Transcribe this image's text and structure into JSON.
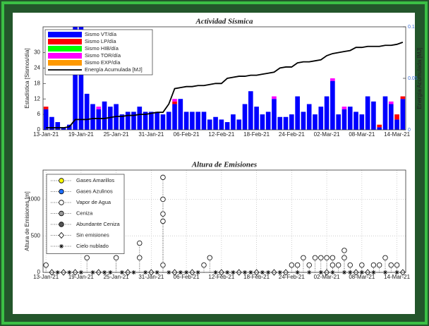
{
  "chart_data": [
    {
      "type": "bar",
      "title": "Actividad Sísmica",
      "ylabel": "Estadística [Sismos/día]",
      "y2label": "Energía Acumulada [MJ]",
      "categories": [
        "13-Jan-21",
        null,
        null,
        null,
        null,
        null,
        "19-Jan-21",
        null,
        null,
        null,
        null,
        null,
        "25-Jan-21",
        null,
        null,
        null,
        null,
        null,
        "31-Jan-21",
        null,
        null,
        null,
        null,
        null,
        "06-Feb-21",
        null,
        null,
        null,
        null,
        null,
        "12-Feb-21",
        null,
        null,
        null,
        null,
        null,
        "18-Feb-21",
        null,
        null,
        null,
        null,
        null,
        "24-Feb-21",
        null,
        null,
        null,
        null,
        null,
        "02-Mar-21",
        null,
        null,
        null,
        null,
        null,
        "08-Mar-21",
        null,
        null,
        null,
        null,
        null,
        "14-Mar-21",
        null
      ],
      "series": [
        {
          "name": "Sismo VT/día",
          "color": "#0000ff",
          "values": [
            8,
            5,
            3,
            1,
            2,
            40,
            40,
            14,
            10,
            8,
            11,
            9,
            10,
            6,
            7,
            7,
            9,
            7,
            7,
            7,
            6,
            7,
            10,
            12,
            7,
            7,
            7,
            7,
            4,
            5,
            4,
            3,
            6,
            4,
            10,
            15,
            9,
            6,
            7,
            12,
            5,
            5,
            6,
            13,
            7,
            10,
            6,
            9,
            13,
            19,
            6,
            8,
            9,
            7,
            6,
            13,
            11,
            1,
            13,
            10,
            4,
            12
          ]
        },
        {
          "name": "Sismo LP/día",
          "color": "#ff0000",
          "values": [
            1,
            0,
            0,
            0,
            0,
            0,
            0,
            0,
            0,
            0,
            0,
            0,
            0,
            0,
            0,
            0,
            0,
            0,
            0,
            0,
            0,
            0,
            1,
            0,
            0,
            0,
            0,
            0,
            0,
            0,
            0,
            0,
            0,
            0,
            0,
            0,
            0,
            0,
            0,
            0,
            0,
            0,
            0,
            0,
            0,
            0,
            0,
            0,
            0,
            0,
            0,
            0,
            0,
            0,
            0,
            0,
            0,
            1,
            0,
            0,
            2,
            1
          ]
        },
        {
          "name": "Sismo HIB/día",
          "color": "#00ff00",
          "values": [
            0,
            0,
            0,
            0,
            0,
            0,
            0,
            0,
            0,
            0,
            0,
            0,
            0,
            0,
            0,
            0,
            0,
            0,
            0,
            0,
            0,
            0,
            0,
            0,
            0,
            0,
            0,
            0,
            0,
            0,
            0,
            0,
            0,
            0,
            0,
            0,
            0,
            0,
            0,
            0,
            0,
            0,
            0,
            0,
            0,
            0,
            0,
            0,
            0,
            0,
            0,
            0,
            0,
            0,
            0,
            0,
            0,
            0,
            0,
            0,
            0,
            0
          ]
        },
        {
          "name": "Sismo TOR/día",
          "color": "#ff00ff",
          "values": [
            0,
            0,
            0,
            0,
            0,
            0,
            0,
            0,
            0,
            1,
            0,
            0,
            0,
            0,
            0,
            0,
            0,
            0,
            0,
            0,
            0,
            0,
            1,
            0,
            0,
            0,
            0,
            0,
            0,
            0,
            0,
            0,
            0,
            0,
            0,
            0,
            0,
            0,
            0,
            1,
            0,
            0,
            0,
            0,
            0,
            0,
            0,
            0,
            0,
            1,
            0,
            1,
            0,
            0,
            0,
            0,
            0,
            0,
            0,
            1,
            0,
            0
          ]
        },
        {
          "name": "Sismo EXP/día",
          "color": "#ff9900",
          "values": [
            0,
            0,
            0,
            0,
            0,
            0,
            0,
            0,
            0,
            0,
            0,
            0,
            0,
            0,
            0,
            0,
            0,
            0,
            0,
            0,
            0,
            0,
            0,
            0,
            0,
            0,
            0,
            0,
            0,
            0,
            0,
            0,
            0,
            0,
            0,
            0,
            0,
            0,
            0,
            0,
            0,
            0,
            0,
            0,
            0,
            0,
            0,
            0,
            0,
            0,
            0,
            0,
            0,
            0,
            0,
            0,
            0,
            0,
            0,
            0,
            0,
            0
          ]
        },
        {
          "name": "Energía Acumulada [MJ]",
          "color": "#000000",
          "axis": "y2",
          "values": [
            0.002,
            0.002,
            0.002,
            0.002,
            0.003,
            0.01,
            0.01,
            0.01,
            0.011,
            0.011,
            0.011,
            0.012,
            0.013,
            0.013,
            0.014,
            0.014,
            0.015,
            0.015,
            0.016,
            0.017,
            0.017,
            0.025,
            0.04,
            0.041,
            0.042,
            0.042,
            0.043,
            0.043,
            0.044,
            0.045,
            0.045,
            0.05,
            0.051,
            0.052,
            0.052,
            0.053,
            0.053,
            0.054,
            0.055,
            0.056,
            0.06,
            0.061,
            0.061,
            0.065,
            0.066,
            0.066,
            0.067,
            0.068,
            0.072,
            0.074,
            0.075,
            0.076,
            0.077,
            0.08,
            0.08,
            0.081,
            0.081,
            0.081,
            0.082,
            0.082,
            0.083,
            0.085
          ]
        }
      ],
      "ylim": [
        0,
        40
      ],
      "yticks": [
        0,
        6,
        12,
        18,
        24,
        30
      ],
      "y2lim": [
        0,
        0.1
      ],
      "y2ticks": [
        0,
        0.05,
        0.1
      ],
      "grid": false
    },
    {
      "type": "scatter",
      "title": "Altura de Emisiones",
      "ylabel": "Altura de Emisiones [m]",
      "xticks": [
        {
          "value": "2021-01-13",
          "label": "13-Jan-21"
        },
        {
          "value": "2021-01-19",
          "label": "19-Jan-21"
        },
        {
          "value": "2021-01-25",
          "label": "25-Jan-21"
        },
        {
          "value": "2021-01-31",
          "label": "31-Jan-21"
        },
        {
          "value": "2021-02-06",
          "label": "06-Feb-21"
        },
        {
          "value": "2021-02-12",
          "label": "12-Feb-21"
        },
        {
          "value": "2021-02-18",
          "label": "18-Feb-21"
        },
        {
          "value": "2021-02-24",
          "label": "24-Feb-21"
        },
        {
          "value": "2021-03-02",
          "label": "02-Mar-21"
        },
        {
          "value": "2021-03-08",
          "label": "08-Mar-21"
        },
        {
          "value": "2021-03-14",
          "label": "14-Mar-21"
        }
      ],
      "ylim": [
        0,
        1400
      ],
      "yticks": [
        0,
        500,
        1000
      ],
      "grid": true,
      "series": [
        {
          "name": "Gases Amarillos",
          "color": "#ffff00",
          "marker": "o",
          "x": [],
          "values": []
        },
        {
          "name": "Gases Azulinos",
          "color": "#1f6fff",
          "marker": "o",
          "x": [],
          "values": []
        },
        {
          "name": "Vapor de Agua",
          "color": "#ffffff",
          "marker": "o",
          "x": [
            "2021-01-13",
            "2021-01-20",
            "2021-01-25",
            "2021-01-29",
            "2021-01-29",
            "2021-02-02",
            "2021-02-02",
            "2021-02-02",
            "2021-02-02",
            "2021-02-02",
            "2021-02-09",
            "2021-02-10",
            "2021-02-24",
            "2021-02-25",
            "2021-02-26",
            "2021-02-27",
            "2021-02-28",
            "2021-03-01",
            "2021-03-02",
            "2021-03-03",
            "2021-03-03",
            "2021-03-04",
            "2021-03-05",
            "2021-03-05",
            "2021-03-06",
            "2021-03-08",
            "2021-03-10",
            "2021-03-11",
            "2021-03-12",
            "2021-03-13",
            "2021-03-14"
          ],
          "values": [
            100,
            200,
            200,
            400,
            200,
            1300,
            1000,
            800,
            700,
            100,
            100,
            200,
            100,
            100,
            200,
            100,
            200,
            200,
            200,
            200,
            100,
            100,
            300,
            200,
            100,
            100,
            100,
            100,
            200,
            100,
            100
          ]
        },
        {
          "name": "Ceniza",
          "color": "#9a9a9a",
          "marker": "o",
          "x": [],
          "values": []
        },
        {
          "name": "Abundante Ceniza",
          "color": "#555555",
          "marker": "o",
          "x": [],
          "values": []
        },
        {
          "name": "Sin emisiones",
          "color": "#ffffff",
          "marker": "d",
          "x": [
            "2021-01-14",
            "2021-01-16",
            "2021-01-18",
            "2021-01-22",
            "2021-01-27",
            "2021-01-31",
            "2021-02-04",
            "2021-02-07",
            "2021-02-12",
            "2021-02-15",
            "2021-02-18",
            "2021-02-21",
            "2021-02-23",
            "2021-03-02",
            "2021-03-07",
            "2021-03-09",
            "2021-03-15"
          ],
          "values": [
            0,
            0,
            0,
            0,
            0,
            0,
            0,
            0,
            0,
            0,
            0,
            0,
            0,
            0,
            0,
            0,
            0
          ]
        },
        {
          "name": "Cielo nublado",
          "color": "#000000",
          "marker": "*",
          "x": [
            "2021-01-15",
            "2021-01-17",
            "2021-01-19",
            "2021-01-21",
            "2021-01-23",
            "2021-01-24",
            "2021-01-26",
            "2021-01-28",
            "2021-01-30",
            "2021-02-01",
            "2021-02-03",
            "2021-02-05",
            "2021-02-06",
            "2021-02-08",
            "2021-02-11",
            "2021-02-13",
            "2021-02-14",
            "2021-02-16",
            "2021-02-17",
            "2021-02-19",
            "2021-02-20",
            "2021-02-22",
            "2021-02-25",
            "2021-02-27",
            "2021-03-01",
            "2021-03-03",
            "2021-03-05",
            "2021-03-06",
            "2021-03-08",
            "2021-03-10",
            "2021-03-12",
            "2021-03-14"
          ],
          "values": [
            0,
            0,
            0,
            0,
            0,
            0,
            0,
            0,
            0,
            0,
            0,
            0,
            0,
            0,
            0,
            0,
            0,
            0,
            0,
            0,
            0,
            0,
            0,
            0,
            0,
            0,
            0,
            0,
            0,
            0,
            0,
            0
          ]
        }
      ]
    }
  ]
}
